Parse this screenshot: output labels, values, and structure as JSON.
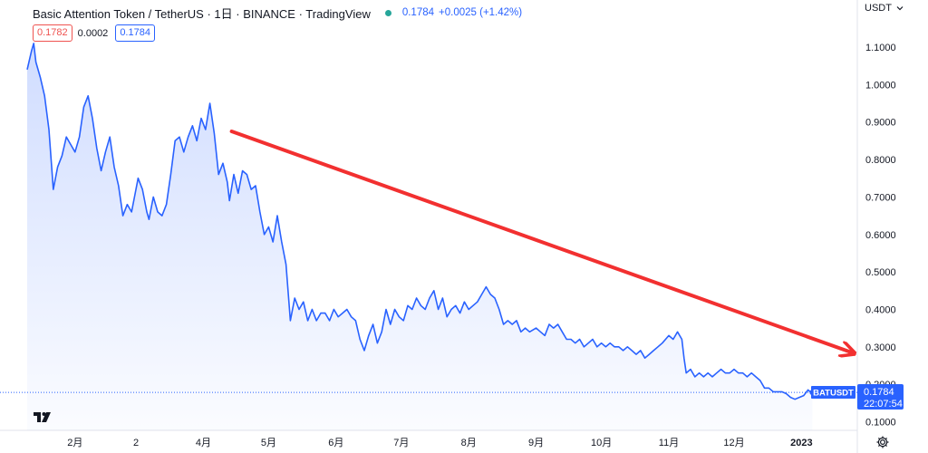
{
  "header": {
    "title": "Basic Attention Token / TetherUS · 1日 · BINANCE · TradingView",
    "price": "0.1784",
    "change": "+0.0025 (+1.42%)",
    "status_color": "#26a69a"
  },
  "badges": {
    "bid": "0.1782",
    "spread": "0.0002",
    "ask": "0.1784"
  },
  "currency_selector": "USDT",
  "price_label": {
    "symbol": "BATUSDT",
    "price": "0.1784",
    "countdown": "22:07:54"
  },
  "icons": {
    "logo": "tradingview-logo-icon",
    "settings": "gear-icon",
    "dropdown": "chevron-down-icon"
  },
  "colors": {
    "line": "#2962ff",
    "trend_arrow": "#f23030",
    "label_bg": "#2962ff",
    "bid": "#ef5350"
  },
  "chart_data": {
    "type": "area",
    "title": "Basic Attention Token / TetherUS · 1日 · BINANCE · TradingView",
    "xlabel": "",
    "ylabel": "",
    "ylim": [
      0.08,
      1.15
    ],
    "y_ticks": [
      "1.1000",
      "1.0000",
      "0.9000",
      "0.8000",
      "0.7000",
      "0.6000",
      "0.5000",
      "0.4000",
      "0.3000",
      "0.2000",
      "0.1000"
    ],
    "x_ticks": [
      {
        "label": "2月",
        "date": "2022-02-01"
      },
      {
        "label": "2",
        "date": "2022-03-01"
      },
      {
        "label": "4月",
        "date": "2022-04-01"
      },
      {
        "label": "5月",
        "date": "2022-05-01"
      },
      {
        "label": "6月",
        "date": "2022-06-01"
      },
      {
        "label": "7月",
        "date": "2022-07-01"
      },
      {
        "label": "8月",
        "date": "2022-08-01"
      },
      {
        "label": "9月",
        "date": "2022-09-01"
      },
      {
        "label": "10月",
        "date": "2022-10-01"
      },
      {
        "label": "11月",
        "date": "2022-11-01"
      },
      {
        "label": "12月",
        "date": "2022-12-01"
      },
      {
        "label": "2023",
        "date": "2023-01-01"
      }
    ],
    "grid": false,
    "last_price": 0.1784,
    "series": [
      {
        "values": [
          [
            "2022-01-10",
            1.04
          ],
          [
            "2022-01-12",
            1.09
          ],
          [
            "2022-01-13",
            1.11
          ],
          [
            "2022-01-14",
            1.06
          ],
          [
            "2022-01-16",
            1.02
          ],
          [
            "2022-01-18",
            0.97
          ],
          [
            "2022-01-20",
            0.88
          ],
          [
            "2022-01-21",
            0.8
          ],
          [
            "2022-01-22",
            0.72
          ],
          [
            "2022-01-24",
            0.78
          ],
          [
            "2022-01-26",
            0.81
          ],
          [
            "2022-01-28",
            0.86
          ],
          [
            "2022-01-30",
            0.84
          ],
          [
            "2022-02-01",
            0.82
          ],
          [
            "2022-02-03",
            0.86
          ],
          [
            "2022-02-05",
            0.94
          ],
          [
            "2022-02-07",
            0.97
          ],
          [
            "2022-02-09",
            0.91
          ],
          [
            "2022-02-11",
            0.83
          ],
          [
            "2022-02-13",
            0.77
          ],
          [
            "2022-02-15",
            0.82
          ],
          [
            "2022-02-17",
            0.86
          ],
          [
            "2022-02-19",
            0.78
          ],
          [
            "2022-02-21",
            0.73
          ],
          [
            "2022-02-23",
            0.65
          ],
          [
            "2022-02-25",
            0.68
          ],
          [
            "2022-02-27",
            0.66
          ],
          [
            "2022-03-01",
            0.72
          ],
          [
            "2022-03-02",
            0.75
          ],
          [
            "2022-03-04",
            0.72
          ],
          [
            "2022-03-06",
            0.66
          ],
          [
            "2022-03-07",
            0.64
          ],
          [
            "2022-03-09",
            0.7
          ],
          [
            "2022-03-11",
            0.66
          ],
          [
            "2022-03-13",
            0.65
          ],
          [
            "2022-03-15",
            0.68
          ],
          [
            "2022-03-17",
            0.76
          ],
          [
            "2022-03-19",
            0.85
          ],
          [
            "2022-03-21",
            0.86
          ],
          [
            "2022-03-23",
            0.82
          ],
          [
            "2022-03-25",
            0.86
          ],
          [
            "2022-03-27",
            0.89
          ],
          [
            "2022-03-29",
            0.85
          ],
          [
            "2022-03-31",
            0.91
          ],
          [
            "2022-04-02",
            0.88
          ],
          [
            "2022-04-04",
            0.95
          ],
          [
            "2022-04-06",
            0.87
          ],
          [
            "2022-04-08",
            0.76
          ],
          [
            "2022-04-10",
            0.79
          ],
          [
            "2022-04-12",
            0.74
          ],
          [
            "2022-04-13",
            0.69
          ],
          [
            "2022-04-15",
            0.76
          ],
          [
            "2022-04-17",
            0.71
          ],
          [
            "2022-04-19",
            0.77
          ],
          [
            "2022-04-21",
            0.76
          ],
          [
            "2022-04-23",
            0.72
          ],
          [
            "2022-04-25",
            0.73
          ],
          [
            "2022-04-27",
            0.66
          ],
          [
            "2022-04-29",
            0.6
          ],
          [
            "2022-05-01",
            0.62
          ],
          [
            "2022-05-03",
            0.58
          ],
          [
            "2022-05-05",
            0.65
          ],
          [
            "2022-05-07",
            0.58
          ],
          [
            "2022-05-09",
            0.52
          ],
          [
            "2022-05-11",
            0.37
          ],
          [
            "2022-05-13",
            0.43
          ],
          [
            "2022-05-15",
            0.4
          ],
          [
            "2022-05-17",
            0.42
          ],
          [
            "2022-05-19",
            0.37
          ],
          [
            "2022-05-21",
            0.4
          ],
          [
            "2022-05-23",
            0.37
          ],
          [
            "2022-05-25",
            0.39
          ],
          [
            "2022-05-27",
            0.39
          ],
          [
            "2022-05-29",
            0.37
          ],
          [
            "2022-05-31",
            0.4
          ],
          [
            "2022-06-02",
            0.38
          ],
          [
            "2022-06-04",
            0.39
          ],
          [
            "2022-06-06",
            0.4
          ],
          [
            "2022-06-08",
            0.38
          ],
          [
            "2022-06-10",
            0.37
          ],
          [
            "2022-06-12",
            0.32
          ],
          [
            "2022-06-14",
            0.29
          ],
          [
            "2022-06-16",
            0.33
          ],
          [
            "2022-06-18",
            0.36
          ],
          [
            "2022-06-20",
            0.31
          ],
          [
            "2022-06-22",
            0.34
          ],
          [
            "2022-06-24",
            0.4
          ],
          [
            "2022-06-26",
            0.36
          ],
          [
            "2022-06-28",
            0.4
          ],
          [
            "2022-06-30",
            0.38
          ],
          [
            "2022-07-02",
            0.37
          ],
          [
            "2022-07-04",
            0.41
          ],
          [
            "2022-07-06",
            0.4
          ],
          [
            "2022-07-08",
            0.43
          ],
          [
            "2022-07-10",
            0.41
          ],
          [
            "2022-07-12",
            0.4
          ],
          [
            "2022-07-14",
            0.43
          ],
          [
            "2022-07-16",
            0.45
          ],
          [
            "2022-07-18",
            0.4
          ],
          [
            "2022-07-20",
            0.43
          ],
          [
            "2022-07-22",
            0.38
          ],
          [
            "2022-07-24",
            0.4
          ],
          [
            "2022-07-26",
            0.41
          ],
          [
            "2022-07-28",
            0.39
          ],
          [
            "2022-07-30",
            0.42
          ],
          [
            "2022-08-01",
            0.4
          ],
          [
            "2022-08-03",
            0.41
          ],
          [
            "2022-08-05",
            0.42
          ],
          [
            "2022-08-07",
            0.44
          ],
          [
            "2022-08-09",
            0.46
          ],
          [
            "2022-08-11",
            0.44
          ],
          [
            "2022-08-13",
            0.43
          ],
          [
            "2022-08-15",
            0.4
          ],
          [
            "2022-08-17",
            0.36
          ],
          [
            "2022-08-19",
            0.37
          ],
          [
            "2022-08-21",
            0.36
          ],
          [
            "2022-08-23",
            0.37
          ],
          [
            "2022-08-25",
            0.34
          ],
          [
            "2022-08-27",
            0.35
          ],
          [
            "2022-08-29",
            0.34
          ],
          [
            "2022-09-01",
            0.35
          ],
          [
            "2022-09-03",
            0.34
          ],
          [
            "2022-09-05",
            0.33
          ],
          [
            "2022-09-07",
            0.36
          ],
          [
            "2022-09-09",
            0.35
          ],
          [
            "2022-09-11",
            0.36
          ],
          [
            "2022-09-13",
            0.34
          ],
          [
            "2022-09-15",
            0.32
          ],
          [
            "2022-09-17",
            0.32
          ],
          [
            "2022-09-19",
            0.31
          ],
          [
            "2022-09-21",
            0.32
          ],
          [
            "2022-09-23",
            0.3
          ],
          [
            "2022-09-25",
            0.31
          ],
          [
            "2022-09-27",
            0.32
          ],
          [
            "2022-09-29",
            0.3
          ],
          [
            "2022-10-01",
            0.31
          ],
          [
            "2022-10-03",
            0.3
          ],
          [
            "2022-10-05",
            0.31
          ],
          [
            "2022-10-07",
            0.3
          ],
          [
            "2022-10-09",
            0.3
          ],
          [
            "2022-10-11",
            0.29
          ],
          [
            "2022-10-13",
            0.3
          ],
          [
            "2022-10-15",
            0.29
          ],
          [
            "2022-10-17",
            0.28
          ],
          [
            "2022-10-19",
            0.29
          ],
          [
            "2022-10-21",
            0.27
          ],
          [
            "2022-10-23",
            0.28
          ],
          [
            "2022-10-25",
            0.29
          ],
          [
            "2022-10-27",
            0.3
          ],
          [
            "2022-10-29",
            0.31
          ],
          [
            "2022-11-01",
            0.33
          ],
          [
            "2022-11-03",
            0.32
          ],
          [
            "2022-11-05",
            0.34
          ],
          [
            "2022-11-07",
            0.32
          ],
          [
            "2022-11-08",
            0.27
          ],
          [
            "2022-11-09",
            0.23
          ],
          [
            "2022-11-11",
            0.24
          ],
          [
            "2022-11-13",
            0.22
          ],
          [
            "2022-11-15",
            0.23
          ],
          [
            "2022-11-17",
            0.22
          ],
          [
            "2022-11-19",
            0.23
          ],
          [
            "2022-11-21",
            0.22
          ],
          [
            "2022-11-23",
            0.23
          ],
          [
            "2022-11-25",
            0.24
          ],
          [
            "2022-11-27",
            0.23
          ],
          [
            "2022-11-29",
            0.23
          ],
          [
            "2022-12-01",
            0.24
          ],
          [
            "2022-12-03",
            0.23
          ],
          [
            "2022-12-05",
            0.23
          ],
          [
            "2022-12-07",
            0.22
          ],
          [
            "2022-12-09",
            0.23
          ],
          [
            "2022-12-11",
            0.22
          ],
          [
            "2022-12-13",
            0.21
          ],
          [
            "2022-12-15",
            0.19
          ],
          [
            "2022-12-17",
            0.19
          ],
          [
            "2022-12-19",
            0.18
          ],
          [
            "2022-12-21",
            0.18
          ],
          [
            "2022-12-23",
            0.18
          ],
          [
            "2022-12-25",
            0.175
          ],
          [
            "2022-12-27",
            0.165
          ],
          [
            "2022-12-29",
            0.16
          ],
          [
            "2022-12-31",
            0.165
          ],
          [
            "2023-01-02",
            0.17
          ],
          [
            "2023-01-04",
            0.185
          ],
          [
            "2023-01-05",
            0.18
          ],
          [
            "2023-01-06",
            0.1784
          ]
        ]
      }
    ],
    "trend_arrow": {
      "from": [
        "2022-04-14",
        0.875
      ],
      "to": [
        "2023-01-24",
        0.285
      ]
    }
  }
}
